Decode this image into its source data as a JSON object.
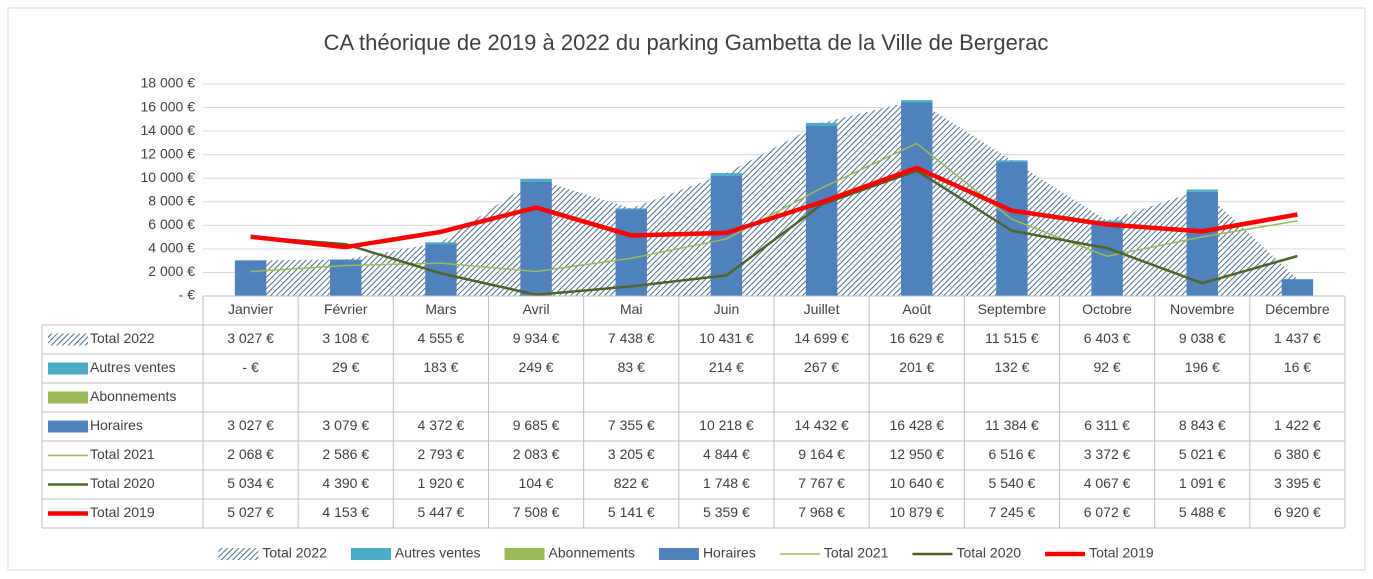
{
  "chart_data": {
    "type": "combo",
    "title": "CA théorique de 2019 à 2022 du parking Gambetta de la Ville de Bergerac",
    "categories": [
      "Janvier",
      "Février",
      "Mars",
      "Avril",
      "Mai",
      "Juin",
      "Juillet",
      "Août",
      "Septembre",
      "Octobre",
      "Novembre",
      "Décembre"
    ],
    "ylim": [
      0,
      18000
    ],
    "yticks": [
      {
        "value": 0,
        "label": "-  €"
      },
      {
        "value": 2000,
        "label": "2 000 €"
      },
      {
        "value": 4000,
        "label": "4 000 €"
      },
      {
        "value": 6000,
        "label": "6 000 €"
      },
      {
        "value": 8000,
        "label": "8 000 €"
      },
      {
        "value": 10000,
        "label": "10 000 €"
      },
      {
        "value": 12000,
        "label": "12 000 €"
      },
      {
        "value": 14000,
        "label": "14 000 €"
      },
      {
        "value": 16000,
        "label": "16 000 €"
      },
      {
        "value": 18000,
        "label": "18 000 €"
      }
    ],
    "grid": true,
    "legend": "bottom",
    "series": [
      {
        "name": "Total 2022",
        "type": "area",
        "color": "#1f4e79",
        "values": [
          3027,
          3108,
          4555,
          9934,
          7438,
          10431,
          14699,
          16629,
          11515,
          6403,
          9038,
          1437
        ],
        "value_labels": [
          "3 027 €",
          "3 108 €",
          "4 555 €",
          "9 934 €",
          "7 438 €",
          "10 431 €",
          "14 699 €",
          "16 629 €",
          "11 515 €",
          "6 403 €",
          "9 038 €",
          "1 437 €"
        ]
      },
      {
        "name": "Autres ventes",
        "type": "bar",
        "color": "#4bacc6",
        "values": [
          0,
          29,
          183,
          249,
          83,
          214,
          267,
          201,
          132,
          92,
          196,
          16
        ],
        "value_labels": [
          "-  €",
          "29 €",
          "183 €",
          "249 €",
          "83 €",
          "214 €",
          "267 €",
          "201 €",
          "132 €",
          "92 €",
          "196 €",
          "16 €"
        ]
      },
      {
        "name": "Abonnements",
        "type": "bar",
        "color": "#9bbb59",
        "values": [
          null,
          null,
          null,
          null,
          null,
          null,
          null,
          null,
          null,
          null,
          null,
          null
        ]
      },
      {
        "name": "Horaires",
        "type": "bar",
        "color": "#4f81bd",
        "values": [
          3027,
          3079,
          4372,
          9685,
          7355,
          10218,
          14432,
          16428,
          11384,
          6311,
          8843,
          1422
        ],
        "value_labels": [
          "3 027 €",
          "3 079 €",
          "4 372 €",
          "9 685 €",
          "7 355 €",
          "10 218 €",
          "14 432 €",
          "16 428 €",
          "11 384 €",
          "6 311 €",
          "8 843 €",
          "1 422 €"
        ]
      },
      {
        "name": "Total 2021",
        "type": "line",
        "color": "#9bbb59",
        "line_width": 1.5,
        "values": [
          2068,
          2586,
          2793,
          2083,
          3205,
          4844,
          9164,
          12950,
          6516,
          3372,
          5021,
          6380
        ],
        "value_labels": [
          "2 068 €",
          "2 586 €",
          "2 793 €",
          "2 083 €",
          "3 205 €",
          "4 844 €",
          "9 164 €",
          "12 950 €",
          "6 516 €",
          "3 372 €",
          "5 021 €",
          "6 380 €"
        ]
      },
      {
        "name": "Total 2020",
        "type": "line",
        "color": "#4f6228",
        "line_width": 2.5,
        "values": [
          5034,
          4390,
          1920,
          104,
          822,
          1748,
          7767,
          10640,
          5540,
          4067,
          1091,
          3395
        ],
        "value_labels": [
          "5 034 €",
          "4 390 €",
          "1 920 €",
          "104 €",
          "822 €",
          "1 748 €",
          "7 767 €",
          "10 640 €",
          "5 540 €",
          "4 067 €",
          "1 091 €",
          "3 395 €"
        ]
      },
      {
        "name": "Total 2019",
        "type": "line",
        "color": "#ff0000",
        "line_width": 4.5,
        "values": [
          5027,
          4153,
          5447,
          7508,
          5141,
          5359,
          7968,
          10879,
          7245,
          6072,
          5488,
          6920
        ],
        "value_labels": [
          "5 027 €",
          "4 153 €",
          "5 447 €",
          "7 508 €",
          "5 141 €",
          "5 359 €",
          "7 968 €",
          "10 879 €",
          "7 245 €",
          "6 072 €",
          "5 488 €",
          "6 920 €"
        ]
      }
    ]
  }
}
